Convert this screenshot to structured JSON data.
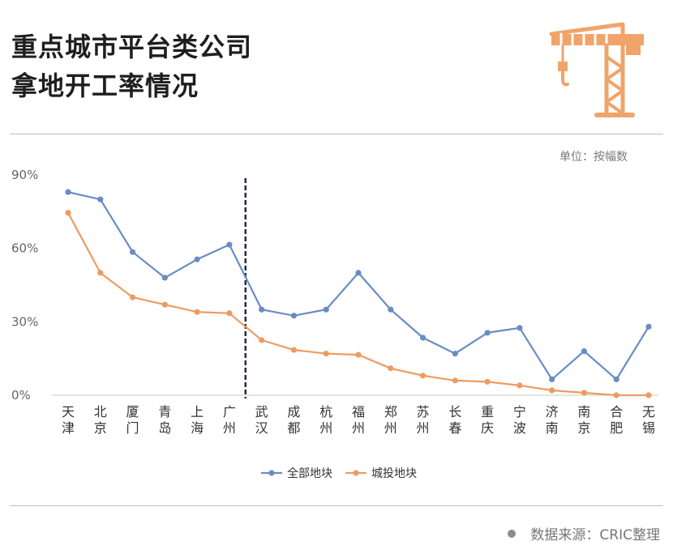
{
  "header": {
    "title_line1": "重点城市平台类公司",
    "title_line2": "拿地开工率情况",
    "icon": "crane-icon",
    "accent_color": "#f0a46a"
  },
  "unit_label": "单位：按幅数",
  "source": {
    "text": "数据来源：CRIC整理",
    "icon": "dot-icon"
  },
  "chart_data": {
    "type": "line",
    "categories": [
      "天津",
      "北京",
      "厦门",
      "青岛",
      "上海",
      "广州",
      "武汉",
      "成都",
      "杭州",
      "福州",
      "郑州",
      "苏州",
      "长春",
      "重庆",
      "宁波",
      "济南",
      "南京",
      "合肥",
      "无锡"
    ],
    "yticks": [
      "0%",
      "30%",
      "60%",
      "90%"
    ],
    "ylim": [
      0,
      90
    ],
    "grid": false,
    "legend_position": "bottom",
    "divider_after_category": "广州",
    "series": [
      {
        "name": "全部地块",
        "color": "#6a8cc4",
        "values": [
          83,
          80,
          58.5,
          48,
          55.5,
          61.5,
          35,
          32.5,
          35,
          50,
          35,
          23.5,
          17,
          25.5,
          27.5,
          6.5,
          18,
          6.5,
          28
        ]
      },
      {
        "name": "城投地块",
        "color": "#ee9b62",
        "values": [
          74.5,
          50,
          40,
          37,
          34,
          33.5,
          22.5,
          18.5,
          17,
          16.5,
          11,
          8,
          6,
          5.5,
          4,
          2,
          1,
          0,
          0
        ]
      }
    ]
  }
}
